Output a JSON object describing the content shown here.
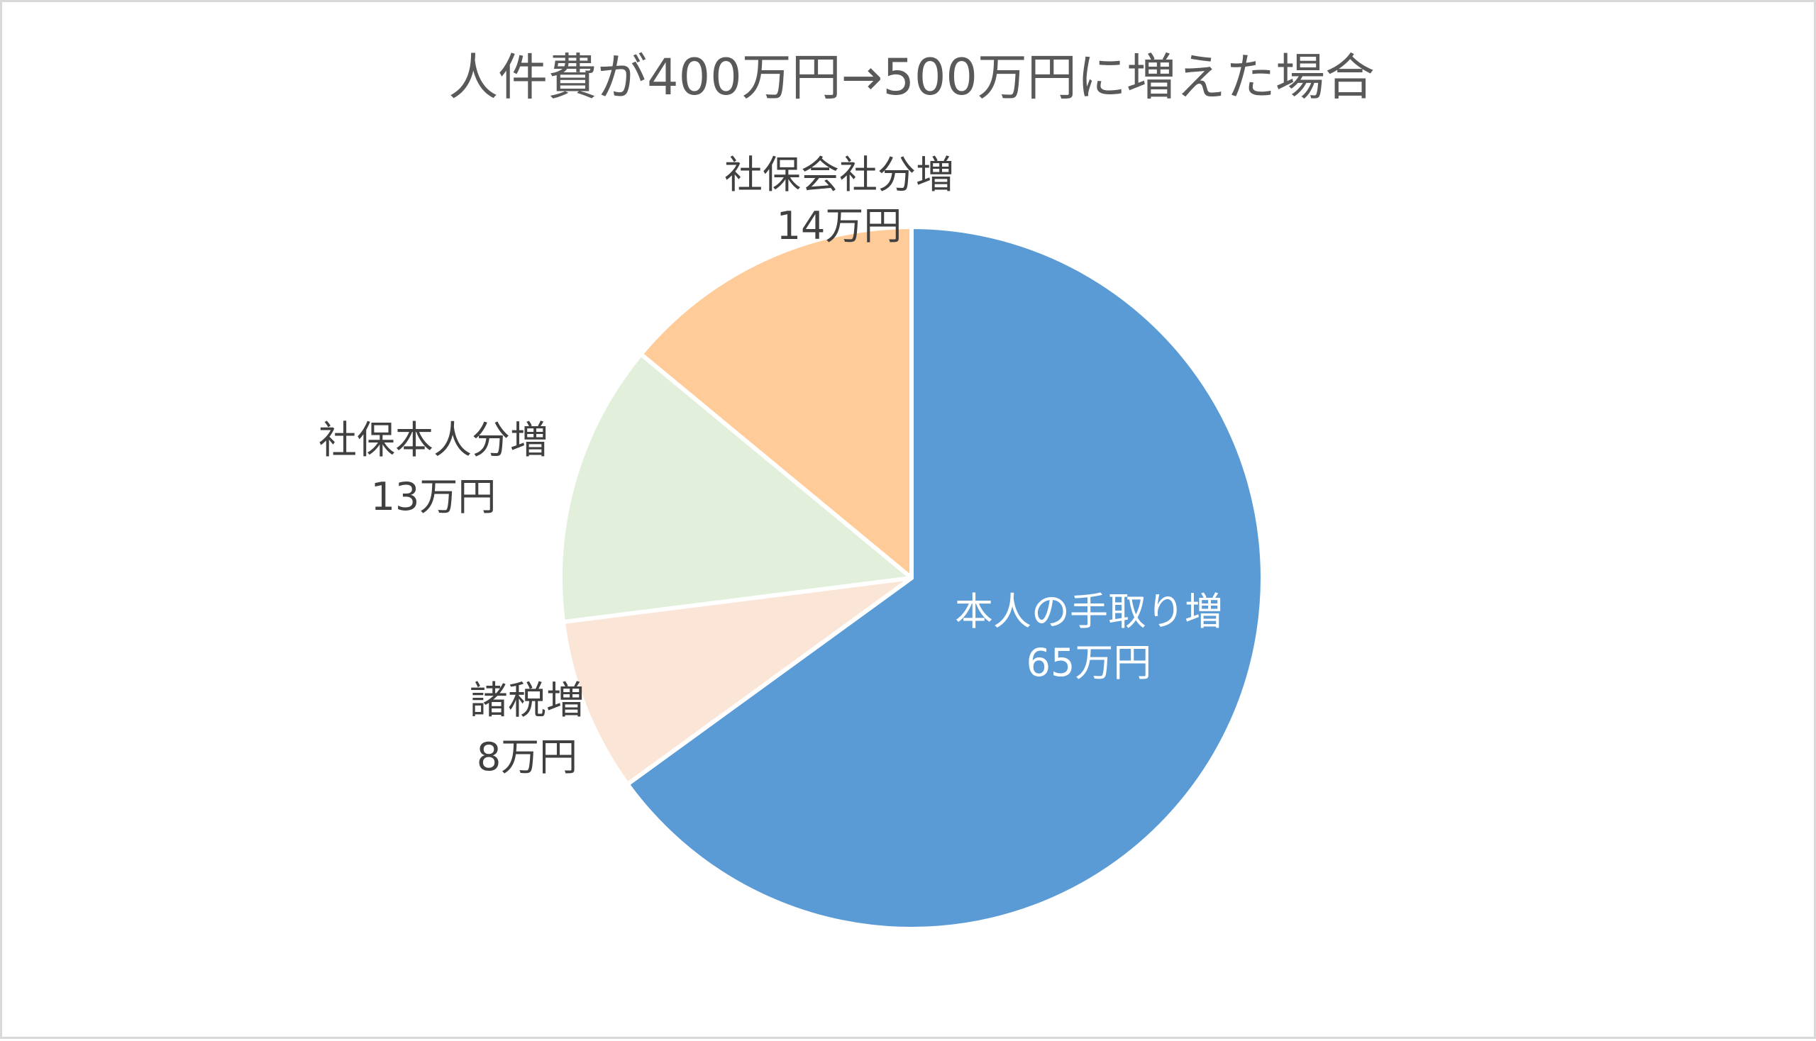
{
  "chart_data": {
    "type": "pie",
    "title": "人件費が400万円→500万円に増えた場合",
    "slices": [
      {
        "name": "本人の手取り増",
        "value": 65,
        "value_label": "65万円",
        "color": "#5b9bd5",
        "label_color": "#ffffff"
      },
      {
        "name": "諸税増",
        "value": 8,
        "value_label": "8万円",
        "color": "#fbe5d6",
        "label_color": "#404040"
      },
      {
        "name": "社保本人分増",
        "value": 13,
        "value_label": "13万円",
        "color": "#e2efda",
        "label_color": "#404040"
      },
      {
        "name": "社保会社分増",
        "value": 14,
        "value_label": "14万円",
        "color": "#ffcc99",
        "label_color": "#404040"
      }
    ],
    "start": "top",
    "direction": "clockwise",
    "legend": "none"
  }
}
